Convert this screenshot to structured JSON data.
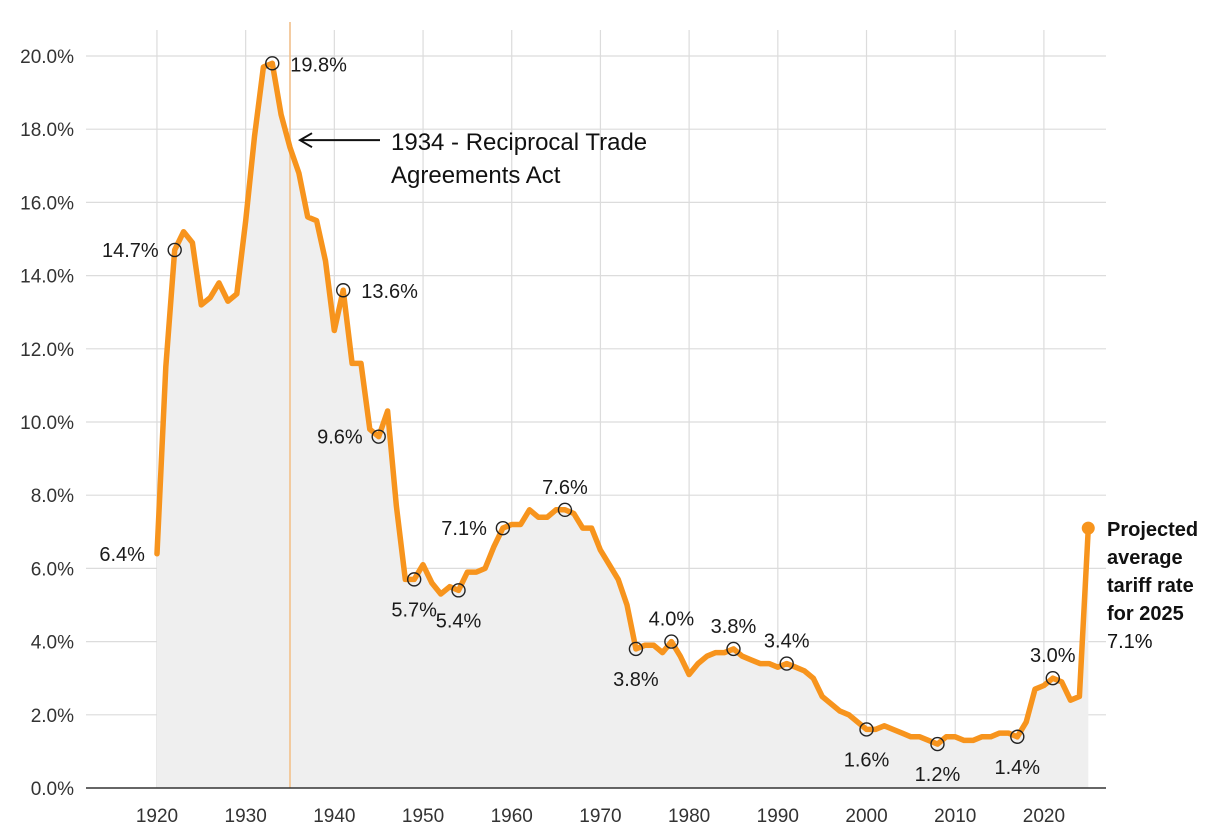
{
  "chart_data": {
    "type": "line",
    "title": "",
    "xlabel": "",
    "ylabel": "",
    "xlim": [
      1912,
      2027
    ],
    "ylim": [
      0,
      20
    ],
    "x_ticks": [
      1920,
      1930,
      1940,
      1950,
      1960,
      1970,
      1980,
      1990,
      2000,
      2010,
      2020
    ],
    "x_tick_labels": [
      "1920",
      "1930",
      "1940",
      "1950",
      "1960",
      "1970",
      "1980",
      "1990",
      "2000",
      "2010",
      "2020"
    ],
    "y_ticks": [
      0,
      2,
      4,
      6,
      8,
      10,
      12,
      14,
      16,
      18,
      20
    ],
    "y_tick_labels": [
      "0.0%",
      "2.0%",
      "4.0%",
      "6.0%",
      "8.0%",
      "10.0%",
      "12.0%",
      "14.0%",
      "16.0%",
      "18.0%",
      "20.0%"
    ],
    "grid": true,
    "area_fill": true,
    "series": [
      {
        "color": "#f7941d",
        "points": [
          [
            1920,
            6.4
          ],
          [
            1921,
            11.5
          ],
          [
            1922,
            14.7
          ],
          [
            1923,
            15.2
          ],
          [
            1924,
            14.9
          ],
          [
            1925,
            13.2
          ],
          [
            1926,
            13.4
          ],
          [
            1927,
            13.8
          ],
          [
            1928,
            13.3
          ],
          [
            1929,
            13.5
          ],
          [
            1930,
            15.5
          ],
          [
            1931,
            17.8
          ],
          [
            1932,
            19.7
          ],
          [
            1933,
            19.8
          ],
          [
            1934,
            18.4
          ],
          [
            1935,
            17.5
          ],
          [
            1936,
            16.8
          ],
          [
            1937,
            15.6
          ],
          [
            1938,
            15.5
          ],
          [
            1939,
            14.4
          ],
          [
            1940,
            12.5
          ],
          [
            1941,
            13.6
          ],
          [
            1942,
            11.6
          ],
          [
            1943,
            11.6
          ],
          [
            1944,
            9.8
          ],
          [
            1945,
            9.6
          ],
          [
            1946,
            10.3
          ],
          [
            1947,
            7.7
          ],
          [
            1948,
            5.7
          ],
          [
            1949,
            5.7
          ],
          [
            1950,
            6.1
          ],
          [
            1951,
            5.6
          ],
          [
            1952,
            5.3
          ],
          [
            1953,
            5.5
          ],
          [
            1954,
            5.4
          ],
          [
            1955,
            5.9
          ],
          [
            1956,
            5.9
          ],
          [
            1957,
            6.0
          ],
          [
            1958,
            6.6
          ],
          [
            1959,
            7.1
          ],
          [
            1960,
            7.2
          ],
          [
            1961,
            7.2
          ],
          [
            1962,
            7.6
          ],
          [
            1963,
            7.4
          ],
          [
            1964,
            7.4
          ],
          [
            1965,
            7.6
          ],
          [
            1966,
            7.6
          ],
          [
            1967,
            7.5
          ],
          [
            1968,
            7.1
          ],
          [
            1969,
            7.1
          ],
          [
            1970,
            6.5
          ],
          [
            1971,
            6.1
          ],
          [
            1972,
            5.7
          ],
          [
            1973,
            5.0
          ],
          [
            1974,
            3.8
          ],
          [
            1975,
            3.9
          ],
          [
            1976,
            3.9
          ],
          [
            1977,
            3.7
          ],
          [
            1978,
            4.0
          ],
          [
            1979,
            3.6
          ],
          [
            1980,
            3.1
          ],
          [
            1981,
            3.4
          ],
          [
            1982,
            3.6
          ],
          [
            1983,
            3.7
          ],
          [
            1984,
            3.7
          ],
          [
            1985,
            3.8
          ],
          [
            1986,
            3.6
          ],
          [
            1987,
            3.5
          ],
          [
            1988,
            3.4
          ],
          [
            1989,
            3.4
          ],
          [
            1990,
            3.3
          ],
          [
            1991,
            3.4
          ],
          [
            1992,
            3.3
          ],
          [
            1993,
            3.2
          ],
          [
            1994,
            3.0
          ],
          [
            1995,
            2.5
          ],
          [
            1996,
            2.3
          ],
          [
            1997,
            2.1
          ],
          [
            1998,
            2.0
          ],
          [
            1999,
            1.8
          ],
          [
            2000,
            1.6
          ],
          [
            2001,
            1.6
          ],
          [
            2002,
            1.7
          ],
          [
            2003,
            1.6
          ],
          [
            2004,
            1.5
          ],
          [
            2005,
            1.4
          ],
          [
            2006,
            1.4
          ],
          [
            2007,
            1.3
          ],
          [
            2008,
            1.2
          ],
          [
            2009,
            1.4
          ],
          [
            2010,
            1.4
          ],
          [
            2011,
            1.3
          ],
          [
            2012,
            1.3
          ],
          [
            2013,
            1.4
          ],
          [
            2014,
            1.4
          ],
          [
            2015,
            1.5
          ],
          [
            2016,
            1.5
          ],
          [
            2017,
            1.4
          ],
          [
            2018,
            1.8
          ],
          [
            2019,
            2.7
          ],
          [
            2020,
            2.8
          ],
          [
            2021,
            3.0
          ],
          [
            2022,
            2.9
          ],
          [
            2023,
            2.4
          ],
          [
            2024,
            2.5
          ],
          [
            2025,
            7.1
          ]
        ]
      }
    ],
    "markers": [
      {
        "x": 1922,
        "y": 14.7,
        "label": "14.7%",
        "pos": "left"
      },
      {
        "x": 1933,
        "y": 19.8,
        "label": "19.8%",
        "pos": "right"
      },
      {
        "x": 1941,
        "y": 13.6,
        "label": "13.6%",
        "pos": "right"
      },
      {
        "x": 1945,
        "y": 9.6,
        "label": "9.6%",
        "pos": "left"
      },
      {
        "x": 1949,
        "y": 5.7,
        "label": "5.7%",
        "pos": "below"
      },
      {
        "x": 1954,
        "y": 5.4,
        "label": "5.4%",
        "pos": "below"
      },
      {
        "x": 1959,
        "y": 7.1,
        "label": "7.1%",
        "pos": "left"
      },
      {
        "x": 1966,
        "y": 7.6,
        "label": "7.6%",
        "pos": "above"
      },
      {
        "x": 1974,
        "y": 3.8,
        "label": "3.8%",
        "pos": "below"
      },
      {
        "x": 1978,
        "y": 4.0,
        "label": "4.0%",
        "pos": "above"
      },
      {
        "x": 1985,
        "y": 3.8,
        "label": "3.8%",
        "pos": "above"
      },
      {
        "x": 1991,
        "y": 3.4,
        "label": "3.4%",
        "pos": "above"
      },
      {
        "x": 2000,
        "y": 1.6,
        "label": "1.6%",
        "pos": "below"
      },
      {
        "x": 2008,
        "y": 1.2,
        "label": "1.2%",
        "pos": "below"
      },
      {
        "x": 2017,
        "y": 1.4,
        "label": "1.4%",
        "pos": "below"
      },
      {
        "x": 2021,
        "y": 3.0,
        "label": "3.0%",
        "pos": "above"
      }
    ],
    "start_label": {
      "x": 1920,
      "y": 6.4,
      "label": "6.4%"
    },
    "vertical_marker": {
      "x": 1935,
      "color": "#f2c08a",
      "annotation": [
        "1934 - Reciprocal Trade",
        "Agreements Act"
      ]
    },
    "projection": {
      "x": 2025,
      "y": 7.1,
      "title_lines": [
        "Projected",
        "average",
        "tariff rate",
        "for 2025"
      ],
      "value_label": "7.1%"
    }
  }
}
